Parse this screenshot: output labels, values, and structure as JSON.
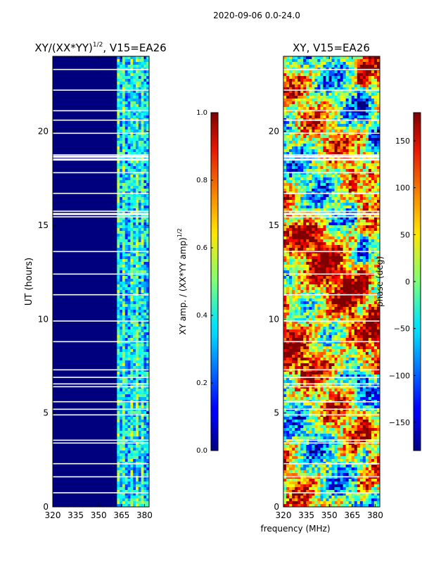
{
  "figure": {
    "suptitle": "2020-09-06 0.0-24.0",
    "xlabel": "frequency (MHz)"
  },
  "chart_data": [
    {
      "type": "heatmap",
      "title_main": "XY/(XX*YY)",
      "title_sup": "1/2",
      "title_tail": ", V15=EA26",
      "xlabel": "",
      "ylabel": "UT (hours)",
      "xlim": [
        320,
        383
      ],
      "ylim": [
        0,
        24
      ],
      "xticks": [
        320,
        335,
        350,
        365,
        380
      ],
      "yticks": [
        0,
        5,
        10,
        15,
        20
      ],
      "colorbar": {
        "label_main": "XY amp. / (XX*YY amp)",
        "label_sup": "1/2",
        "range": [
          0.0,
          1.0
        ],
        "ticks": [
          "0.0",
          "0.2",
          "0.4",
          "0.6",
          "0.8",
          "1.0"
        ],
        "colormap": "jet"
      },
      "description_values": {
        "low_band_value": 0.0,
        "high_band_range_mhz": [
          362,
          383
        ],
        "high_band_value_range": [
          0.15,
          0.5
        ]
      }
    },
    {
      "type": "heatmap",
      "title_main": "XY, V15=EA26",
      "xlabel": "frequency (MHz)",
      "ylabel": "",
      "xlim": [
        320,
        383
      ],
      "ylim": [
        0,
        24
      ],
      "xticks": [
        320,
        335,
        350,
        365,
        380
      ],
      "yticks": [
        0,
        5,
        10,
        15,
        20
      ],
      "colorbar": {
        "label_main": "phase (deg)",
        "range": [
          -180,
          180
        ],
        "ticks": [
          "−150",
          "−100",
          "−50",
          "0",
          "50",
          "100",
          "150"
        ],
        "tick_values": [
          -150,
          -100,
          -50,
          0,
          50,
          100,
          150
        ],
        "colormap": "jet"
      }
    }
  ],
  "gaps_hours": [
    0.75,
    1.6,
    2.3,
    3.4,
    3.55,
    4.9,
    5.2,
    5.6,
    6.4,
    6.55,
    6.9,
    7.3,
    8.8,
    9.9,
    11.3,
    12.4,
    13.6,
    15.45,
    15.6,
    15.75,
    16.7,
    17.8,
    18.5,
    18.65,
    18.75,
    19.9,
    20.6,
    21.1,
    22.2,
    23.3
  ]
}
